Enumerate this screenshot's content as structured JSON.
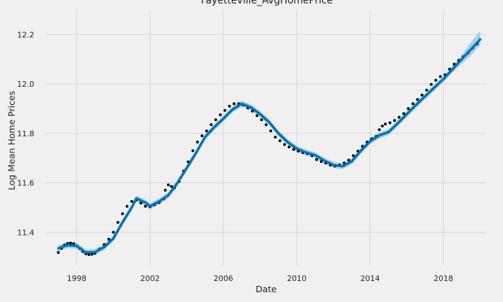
{
  "chart_data": {
    "type": "line",
    "title": "Fayetteville_AvgHomePrice",
    "xlabel": "Date",
    "ylabel": "Log Mean Home Prices",
    "xlim": [
      "1996-05-01",
      "2020-05-01"
    ],
    "ylim": [
      11.265,
      12.3
    ],
    "x_ticks": [
      "1998",
      "2002",
      "2006",
      "2010",
      "2014",
      "2018"
    ],
    "y_ticks": [
      "11.4",
      "11.6",
      "11.8",
      "12.0",
      "12.2"
    ],
    "grid": true,
    "colors": {
      "background": "#f0f0f0",
      "grid": "#d6d6d6",
      "forecast": "#0072b2",
      "band": "#8fc3e8",
      "observed": "#000000"
    },
    "series": [
      {
        "name": "",
        "role": "observed",
        "x": [
          "1997-01",
          "1997-03",
          "1997-05",
          "1997-07",
          "1997-09",
          "1997-11",
          "1998-01",
          "1998-03",
          "1998-05",
          "1998-07",
          "1998-09",
          "1998-11",
          "1999-01",
          "1999-04",
          "1999-07",
          "1999-10",
          "2000-01",
          "2000-04",
          "2000-07",
          "2000-10",
          "2001-01",
          "2001-04",
          "2001-07",
          "2001-10",
          "2002-01",
          "2002-04",
          "2002-07",
          "2002-10",
          "2002-11",
          "2003-01",
          "2003-03",
          "2003-05",
          "2003-08",
          "2003-11",
          "2004-02",
          "2004-05",
          "2004-08",
          "2004-11",
          "2005-02",
          "2005-05",
          "2005-08",
          "2005-11",
          "2006-02",
          "2006-05",
          "2006-08",
          "2006-11",
          "2007-02",
          "2007-05",
          "2007-08",
          "2007-11",
          "2008-02",
          "2008-05",
          "2008-08",
          "2008-11",
          "2009-02",
          "2009-05",
          "2009-08",
          "2009-11",
          "2010-02",
          "2010-05",
          "2010-08",
          "2010-11",
          "2011-02",
          "2011-05",
          "2011-08",
          "2011-11",
          "2012-02",
          "2012-05",
          "2012-08",
          "2012-11",
          "2013-02",
          "2013-05",
          "2013-08",
          "2013-11",
          "2014-02",
          "2014-05",
          "2014-07",
          "2014-09",
          "2014-11",
          "2015-02",
          "2015-05",
          "2015-08",
          "2015-11",
          "2016-02",
          "2016-05",
          "2016-08",
          "2016-11",
          "2017-02",
          "2017-05",
          "2017-08",
          "2017-11",
          "2018-02",
          "2018-05",
          "2018-08",
          "2018-11",
          "2019-02",
          "2019-05",
          "2019-08",
          "2019-11"
        ],
        "y": [
          11.318,
          11.335,
          11.348,
          11.355,
          11.356,
          11.354,
          11.345,
          11.335,
          11.322,
          11.313,
          11.31,
          11.311,
          11.315,
          11.332,
          11.35,
          11.372,
          11.4,
          11.44,
          11.475,
          11.505,
          11.525,
          11.53,
          11.518,
          11.505,
          11.503,
          11.512,
          11.52,
          11.535,
          11.57,
          11.592,
          11.585,
          11.58,
          11.605,
          11.648,
          11.685,
          11.73,
          11.765,
          11.79,
          11.81,
          11.835,
          11.855,
          11.875,
          11.893,
          11.91,
          11.92,
          11.92,
          11.915,
          11.903,
          11.89,
          11.872,
          11.855,
          11.835,
          11.81,
          11.785,
          11.77,
          11.755,
          11.745,
          11.735,
          11.728,
          11.722,
          11.718,
          11.71,
          11.694,
          11.686,
          11.68,
          11.672,
          11.668,
          11.672,
          11.68,
          11.692,
          11.71,
          11.728,
          11.748,
          11.765,
          11.778,
          11.788,
          11.815,
          11.83,
          11.838,
          11.843,
          11.852,
          11.865,
          11.88,
          11.9,
          11.92,
          11.937,
          11.955,
          11.975,
          11.998,
          12.015,
          12.03,
          12.037,
          12.06,
          12.08,
          12.095,
          12.11,
          12.125,
          12.145,
          12.162
        ]
      },
      {
        "name": "",
        "role": "forecast",
        "x": [
          "1997-01",
          "1997-07",
          "1998-01",
          "1998-07",
          "1999-01",
          "1999-07",
          "2000-01",
          "2000-07",
          "2001-01",
          "2001-04",
          "2001-10",
          "2002-01",
          "2002-07",
          "2003-01",
          "2003-07",
          "2004-01",
          "2004-07",
          "2005-01",
          "2005-07",
          "2006-01",
          "2006-07",
          "2007-01",
          "2007-07",
          "2008-01",
          "2008-07",
          "2009-01",
          "2009-07",
          "2010-01",
          "2010-07",
          "2011-01",
          "2011-07",
          "2012-01",
          "2012-07",
          "2013-01",
          "2013-07",
          "2014-01",
          "2014-07",
          "2015-01",
          "2015-07",
          "2016-01",
          "2016-07",
          "2017-01",
          "2017-07",
          "2018-01",
          "2018-07",
          "2019-01",
          "2019-07",
          "2020-01"
        ],
        "y": [
          11.335,
          11.348,
          11.345,
          11.318,
          11.32,
          11.34,
          11.375,
          11.44,
          11.5,
          11.537,
          11.52,
          11.505,
          11.525,
          11.55,
          11.6,
          11.66,
          11.72,
          11.785,
          11.825,
          11.86,
          11.897,
          11.92,
          11.905,
          11.878,
          11.845,
          11.8,
          11.765,
          11.738,
          11.723,
          11.712,
          11.69,
          11.672,
          11.667,
          11.687,
          11.73,
          11.768,
          11.792,
          11.805,
          11.84,
          11.878,
          11.915,
          11.95,
          11.985,
          12.02,
          12.06,
          12.1,
          12.14,
          12.18
        ]
      },
      {
        "name": "",
        "role": "uncertainty",
        "x": [
          "1997-01",
          "1997-07",
          "1998-01",
          "1998-07",
          "1999-01",
          "1999-07",
          "2000-01",
          "2000-07",
          "2001-01",
          "2001-04",
          "2001-10",
          "2002-01",
          "2002-07",
          "2003-01",
          "2003-07",
          "2004-01",
          "2004-07",
          "2005-01",
          "2005-07",
          "2006-01",
          "2006-07",
          "2007-01",
          "2007-07",
          "2008-01",
          "2008-07",
          "2009-01",
          "2009-07",
          "2010-01",
          "2010-07",
          "2011-01",
          "2011-07",
          "2012-01",
          "2012-07",
          "2013-01",
          "2013-07",
          "2014-01",
          "2014-07",
          "2015-01",
          "2015-07",
          "2016-01",
          "2016-07",
          "2017-01",
          "2017-07",
          "2018-01",
          "2018-07",
          "2019-01",
          "2019-07",
          "2020-01"
        ],
        "upper": [
          11.347,
          11.36,
          11.357,
          11.33,
          11.332,
          11.352,
          11.387,
          11.452,
          11.512,
          11.549,
          11.532,
          11.517,
          11.537,
          11.562,
          11.612,
          11.672,
          11.732,
          11.797,
          11.837,
          11.872,
          11.909,
          11.932,
          11.917,
          11.89,
          11.857,
          11.812,
          11.777,
          11.75,
          11.735,
          11.724,
          11.702,
          11.684,
          11.679,
          11.699,
          11.742,
          11.78,
          11.804,
          11.817,
          11.852,
          11.89,
          11.927,
          11.962,
          11.997,
          12.032,
          12.074,
          12.118,
          12.168,
          12.215
        ],
        "lower": [
          11.323,
          11.336,
          11.333,
          11.306,
          11.308,
          11.328,
          11.363,
          11.428,
          11.488,
          11.525,
          11.508,
          11.493,
          11.513,
          11.538,
          11.588,
          11.648,
          11.708,
          11.773,
          11.813,
          11.848,
          11.885,
          11.908,
          11.893,
          11.866,
          11.833,
          11.788,
          11.753,
          11.726,
          11.711,
          11.7,
          11.678,
          11.66,
          11.655,
          11.675,
          11.718,
          11.756,
          11.78,
          11.793,
          11.828,
          11.866,
          11.903,
          11.938,
          11.973,
          12.008,
          12.046,
          12.082,
          12.115,
          12.158
        ]
      }
    ]
  }
}
